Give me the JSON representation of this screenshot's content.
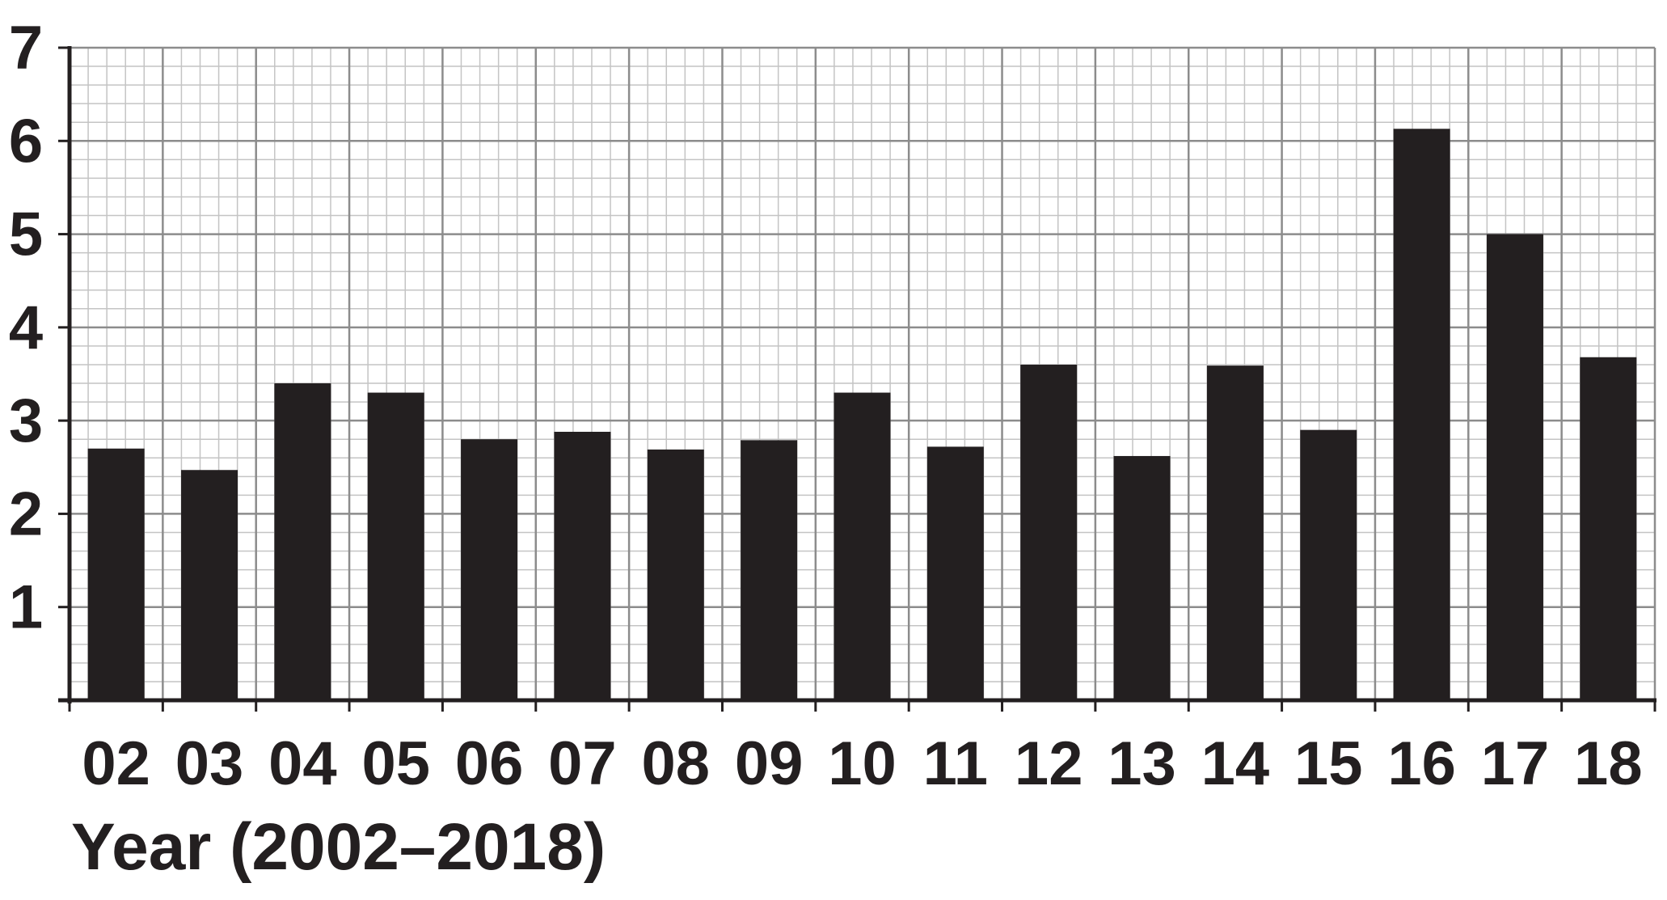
{
  "chart_data": {
    "type": "bar",
    "title": "",
    "xlabel": "Year (2002–2018)",
    "ylabel": "",
    "categories": [
      "02",
      "03",
      "04",
      "05",
      "06",
      "07",
      "08",
      "09",
      "10",
      "11",
      "12",
      "13",
      "14",
      "15",
      "16",
      "17",
      "18"
    ],
    "values": [
      2.7,
      2.47,
      3.4,
      3.3,
      2.8,
      2.88,
      2.69,
      2.79,
      3.3,
      2.72,
      3.6,
      2.62,
      3.59,
      2.9,
      6.13,
      5.0,
      3.68
    ],
    "ylim": [
      0,
      7
    ],
    "yticks": [
      "1",
      "2",
      "3",
      "4",
      "5",
      "6",
      "7"
    ],
    "grid": true,
    "minor_grid_per_unit": 5,
    "legend": "none",
    "colors": {
      "bar": "#231f20",
      "axis": "#231f20",
      "major_grid": "#8c8c8c",
      "minor_grid": "#c4c4c4",
      "text": "#231f20"
    }
  }
}
